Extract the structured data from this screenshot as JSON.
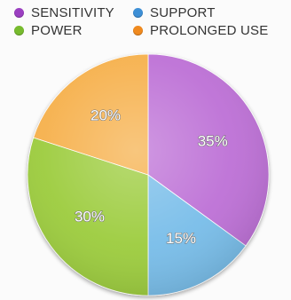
{
  "chart_data": {
    "type": "pie",
    "legend_position": "top",
    "slices": [
      {
        "label": "SENSITIVITY",
        "value": 35,
        "value_label": "35%",
        "color": "#bd6fd6"
      },
      {
        "label": "SUPPORT",
        "value": 15,
        "value_label": "15%",
        "color": "#78bde9"
      },
      {
        "label": "POWER",
        "value": 30,
        "value_label": "30%",
        "color": "#9ccc3e"
      },
      {
        "label": "PROLONGED USE",
        "value": 20,
        "value_label": "20%",
        "color": "#f6b04c"
      }
    ],
    "legend": [
      {
        "label": "SENSITIVITY",
        "color": "#9b3fc1"
      },
      {
        "label": "SUPPORT",
        "color": "#3d8fd6"
      },
      {
        "label": "POWER",
        "color": "#77bb2e"
      },
      {
        "label": "PROLONGED USE",
        "color": "#f08a1f"
      }
    ]
  }
}
